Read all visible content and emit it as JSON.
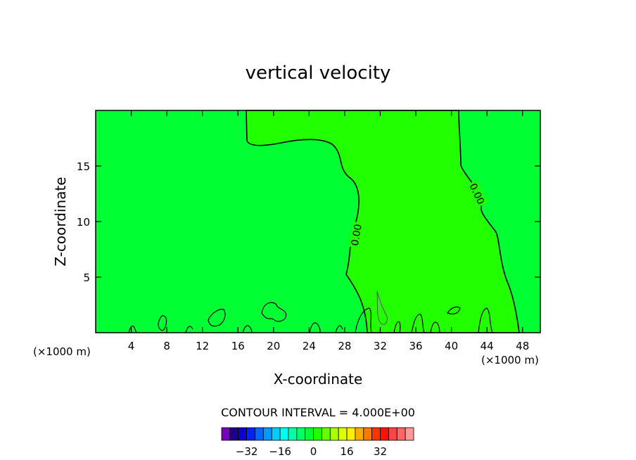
{
  "chart_data": {
    "type": "contour",
    "title": "vertical velocity",
    "xlabel": "X-coordinate",
    "ylabel": "Z-coordinate",
    "x_unit": "(×1000 m)",
    "xlim": [
      0,
      50
    ],
    "ylim": [
      0,
      20
    ],
    "x_ticks": [
      4,
      8,
      12,
      16,
      20,
      24,
      28,
      32,
      36,
      40,
      44,
      48
    ],
    "y_ticks": [
      5,
      10,
      15
    ],
    "contour_interval_text": "CONTOUR INTERVAL = 4.000E+00",
    "contour_labels": [
      {
        "text": "0.00",
        "x": 29.3,
        "y": 8.8
      },
      {
        "text": "0.00",
        "x": 42.9,
        "y": 12.5
      }
    ],
    "regions": [
      {
        "name": "near-zero-positive",
        "color": "#22ff00",
        "boundary_x_at_z": [
          {
            "z": 20,
            "left": 17.0,
            "right": 41.2
          },
          {
            "z": 17,
            "left": 18.5,
            "right": 41.2
          },
          {
            "z": 15,
            "left": 27.0,
            "right": 41.6
          },
          {
            "z": 10,
            "left": 29.2,
            "right": 43.0
          },
          {
            "z": 5,
            "left": 28.8,
            "right": 46.0
          },
          {
            "z": 0,
            "left": 30.0,
            "right": 47.5
          }
        ]
      }
    ],
    "background_color": "#00ff33",
    "colorbar": {
      "colors": [
        "#7700bb",
        "#1a0088",
        "#0d00c8",
        "#0022ff",
        "#0066ff",
        "#0099ff",
        "#00ccff",
        "#00ffee",
        "#00ffaa",
        "#00ff66",
        "#00ff33",
        "#22ff00",
        "#66ff00",
        "#aaff00",
        "#ddff00",
        "#ffee00",
        "#ffaa00",
        "#ff7700",
        "#ff3300",
        "#ff1100",
        "#ff4444",
        "#ff6666",
        "#ff9999"
      ],
      "tick_labels": [
        "-32",
        "-16",
        "0",
        "16",
        "32"
      ],
      "tick_values": [
        -32,
        -16,
        0,
        16,
        32
      ]
    }
  }
}
